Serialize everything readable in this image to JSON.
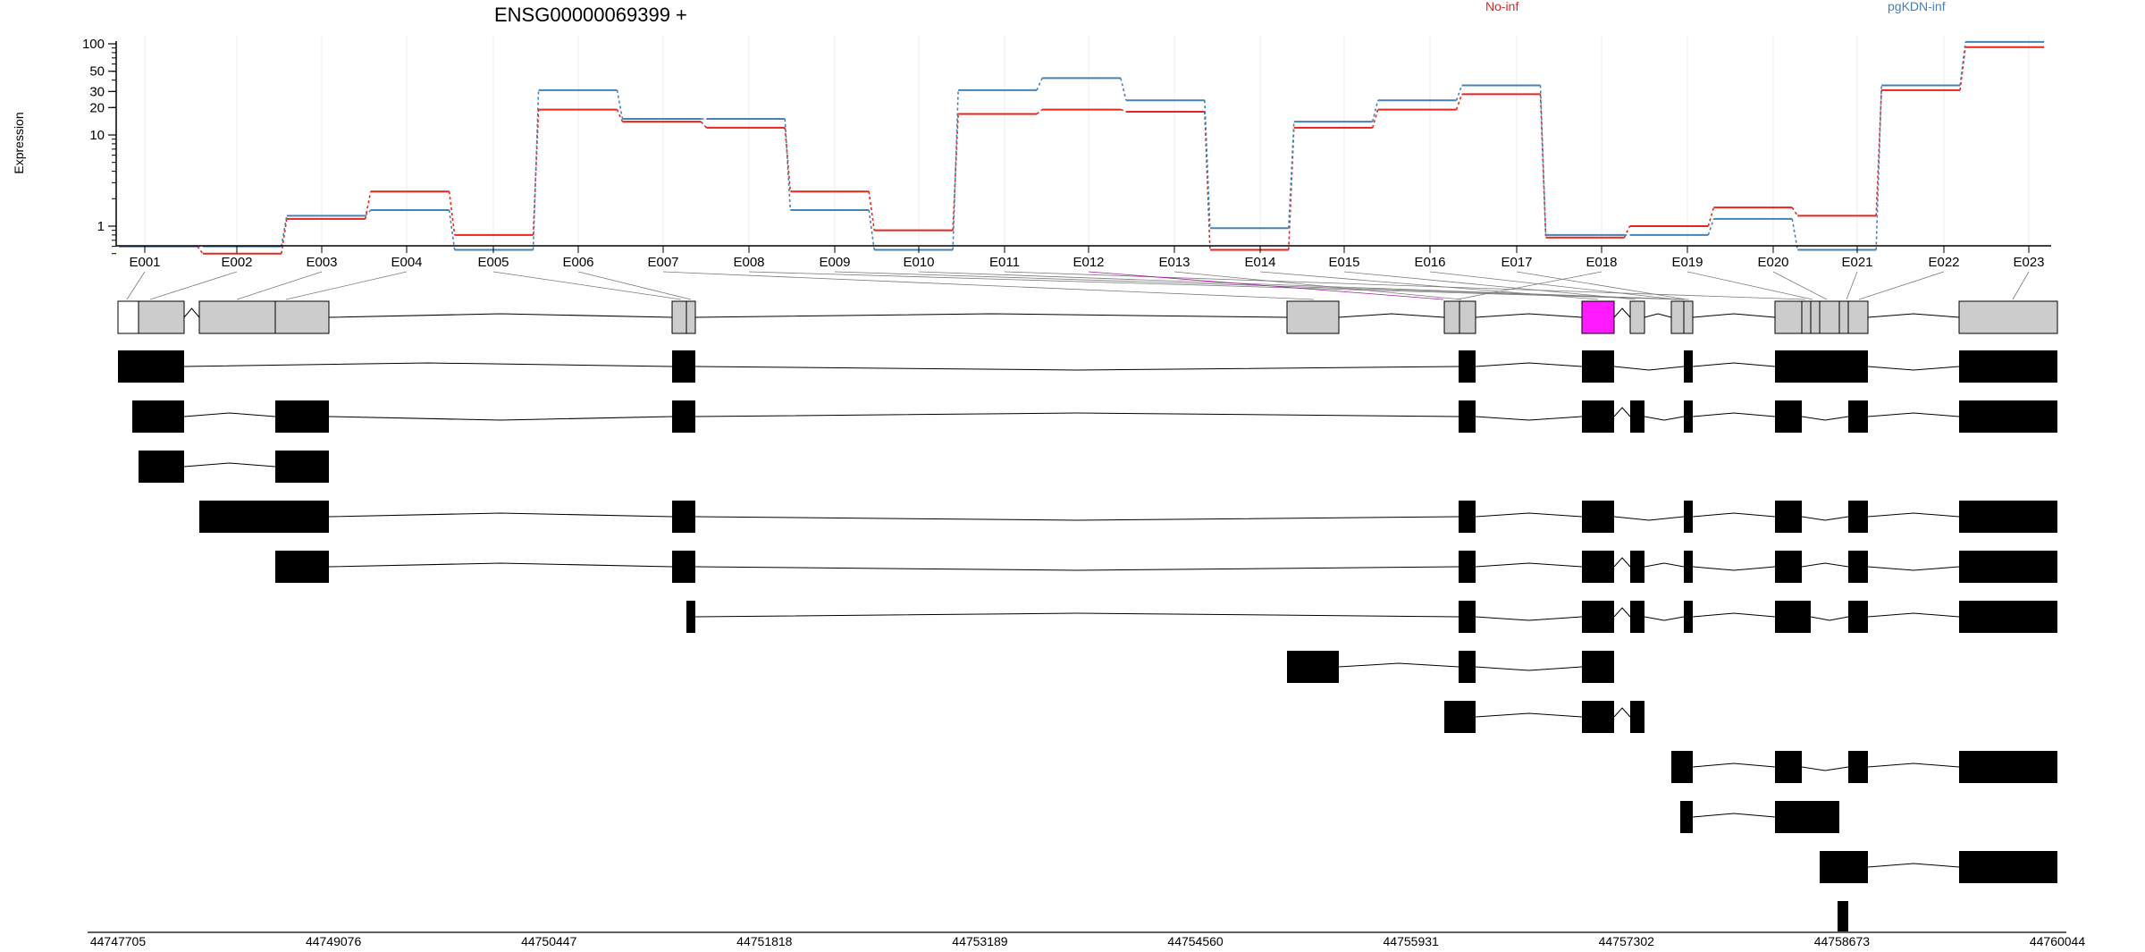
{
  "chart_data": {
    "type": "line",
    "title": "ENSG00000069399 +",
    "ylabel": "Expression",
    "y_scale": "log",
    "yticks": [
      "1",
      "10",
      "20",
      "30",
      "50",
      "100"
    ],
    "legend_position": "top-right",
    "exons": [
      "E001",
      "E002",
      "E003",
      "E004",
      "E005",
      "E006",
      "E007",
      "E008",
      "E009",
      "E010",
      "E011",
      "E012",
      "E013",
      "E014",
      "E015",
      "E016",
      "E017",
      "E018",
      "E019",
      "E020",
      "E021",
      "E022",
      "E023"
    ],
    "series": [
      {
        "name": "No-inf",
        "color": "#e3261f",
        "values": [
          0.6,
          0.5,
          1.2,
          2.4,
          0.8,
          19,
          14,
          12,
          2.4,
          0.9,
          17,
          19,
          18,
          0.55,
          12,
          19,
          28,
          0.75,
          1.0,
          1.6,
          1.3,
          31,
          92
        ]
      },
      {
        "name": "pgKDN-inf",
        "color": "#4682b4",
        "values": [
          0.6,
          0.6,
          1.3,
          1.5,
          0.55,
          31,
          15,
          15,
          1.5,
          0.55,
          31,
          42,
          24,
          0.95,
          14,
          24,
          35,
          0.8,
          0.8,
          1.2,
          0.55,
          35,
          105
        ]
      }
    ],
    "highlighted_exon": "E018",
    "highlight_color": "#ff1aff",
    "genomic_ticks": [
      "44747705",
      "44749076",
      "44750447",
      "44751818",
      "44753189",
      "44754560",
      "44755931",
      "44757302",
      "44758673",
      "44760044"
    ],
    "transcript_count": 12
  }
}
